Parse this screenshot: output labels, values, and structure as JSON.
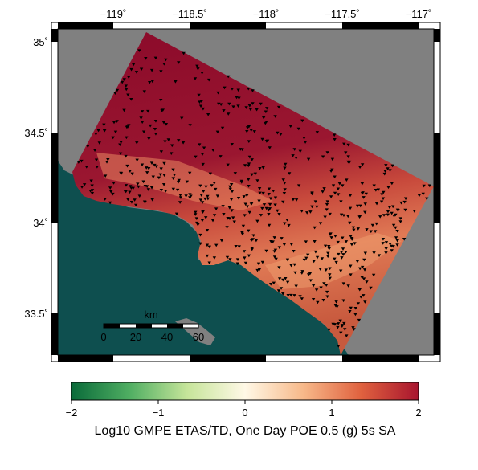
{
  "map": {
    "lon_ticks": [
      "−119˚",
      "−118.5˚",
      "−118˚",
      "−117.5˚",
      "−117˚"
    ],
    "lat_ticks": [
      "35˚",
      "34.5˚",
      "34˚",
      "33.5˚"
    ],
    "lon_range": [
      -119.35,
      -116.9
    ],
    "lat_range": [
      33.25,
      35.1
    ],
    "colors": {
      "land_outside": "#808080",
      "ocean": "#0e4f4f",
      "hazard_high": "#8b0a2a",
      "hazard_mid": "#c84a3c",
      "hazard_low": "#f0a070",
      "station_marker": "#000000"
    },
    "station_marker_icon": "inverted-triangle-icon"
  },
  "scale_bar": {
    "unit": "km",
    "ticks": [
      "0",
      "20",
      "40",
      "60"
    ]
  },
  "colorbar": {
    "min": -2,
    "max": 2,
    "ticks": [
      "−2",
      "−1",
      "0",
      "1",
      "2"
    ],
    "title": "Log10 GMPE ETAS/TD, One Day POE 0.5 (g) 5s SA",
    "gradient": [
      "#0a6b3a",
      "#4fae62",
      "#c6e59a",
      "#fff8e6",
      "#f7b98a",
      "#e0623f",
      "#a8142e"
    ]
  }
}
